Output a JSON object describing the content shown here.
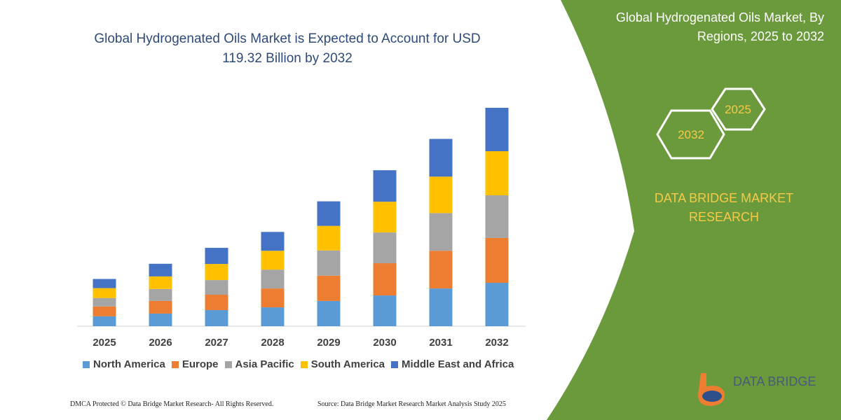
{
  "chart_data": {
    "type": "bar",
    "stacked": true,
    "title": "Global Hydrogenated Oils Market is Expected to Account for USD 119.32 Billion by 2032",
    "categories": [
      "2025",
      "2026",
      "2027",
      "2028",
      "2029",
      "2030",
      "2031",
      "2032"
    ],
    "series": [
      {
        "name": "North America",
        "color": "#5b9bd5",
        "values": [
          5.4,
          6.9,
          8.8,
          10.3,
          13.8,
          16.8,
          20.6,
          23.7
        ]
      },
      {
        "name": "Europe",
        "color": "#ed7d31",
        "values": [
          5.4,
          6.9,
          8.4,
          10.3,
          13.8,
          17.6,
          20.6,
          24.5
        ]
      },
      {
        "name": "Asia Pacific",
        "color": "#a5a5a5",
        "values": [
          4.6,
          6.5,
          8.0,
          10.3,
          13.8,
          16.8,
          20.6,
          23.3
        ]
      },
      {
        "name": "South America",
        "color": "#ffc000",
        "values": [
          5.4,
          6.9,
          8.8,
          10.3,
          13.4,
          16.8,
          19.9,
          24.1
        ]
      },
      {
        "name": "Middle East and Africa",
        "color": "#4472c4",
        "values": [
          5.0,
          6.9,
          8.8,
          10.3,
          13.4,
          17.2,
          20.6,
          23.7
        ]
      }
    ]
  },
  "panel": {
    "title": "Global Hydrogenated Oils Market, By Regions, 2025 to 2032",
    "hexagons": [
      "2025",
      "2032"
    ],
    "brand": "DATA BRIDGE MARKET RESEARCH"
  },
  "logo": "DATA BRIDGE",
  "footer": {
    "left": "DMCA Protected © Data Bridge Market Research- All Rights Reserved.",
    "right": "Source: Data Bridge Market Research  Market Analysis Study 2025"
  }
}
